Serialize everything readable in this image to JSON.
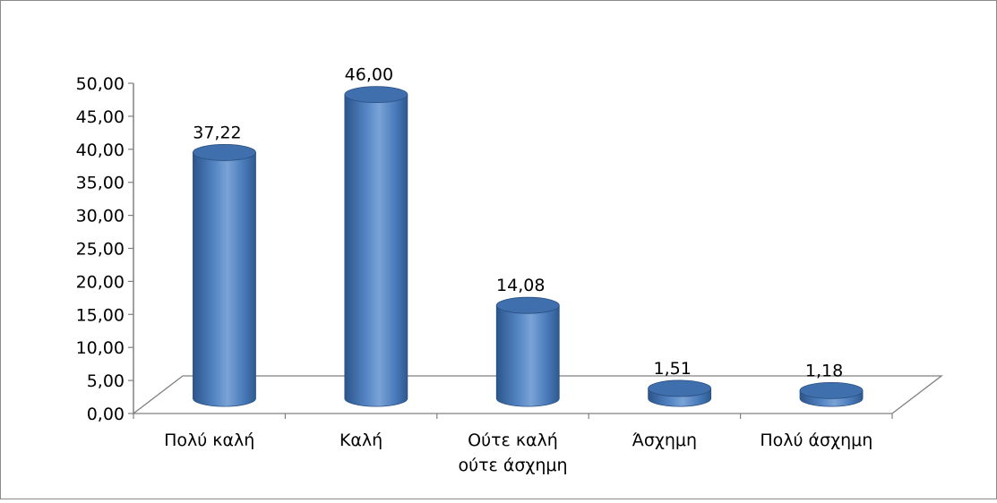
{
  "chart_data": {
    "type": "bar",
    "style": "3d-cylinder",
    "categories": [
      [
        "Πολύ καλή"
      ],
      [
        "Καλή"
      ],
      [
        "Ούτε καλή",
        "ούτε άσχημη"
      ],
      [
        "Άσχημη"
      ],
      [
        "Πολύ άσχημη"
      ]
    ],
    "values": [
      37.22,
      46.0,
      14.08,
      1.51,
      1.18
    ],
    "value_labels": [
      "37,22",
      "46,00",
      "14,08",
      "1,51",
      "1,18"
    ],
    "title": "",
    "xlabel": "",
    "ylabel": "",
    "ylim": [
      0,
      50
    ],
    "yticks": [
      "0,00",
      "5,00",
      "10,00",
      "15,00",
      "20,00",
      "25,00",
      "30,00",
      "35,00",
      "40,00",
      "45,00",
      "50,00"
    ],
    "grid": false,
    "legend": "none",
    "colors": {
      "bar_dark": "#2e5a91",
      "bar_mid": "#4f81bd",
      "bar_light": "#7fa6d8",
      "bar_top": "#3f6fad",
      "axis": "#808080",
      "floor_line": "#808080"
    }
  }
}
